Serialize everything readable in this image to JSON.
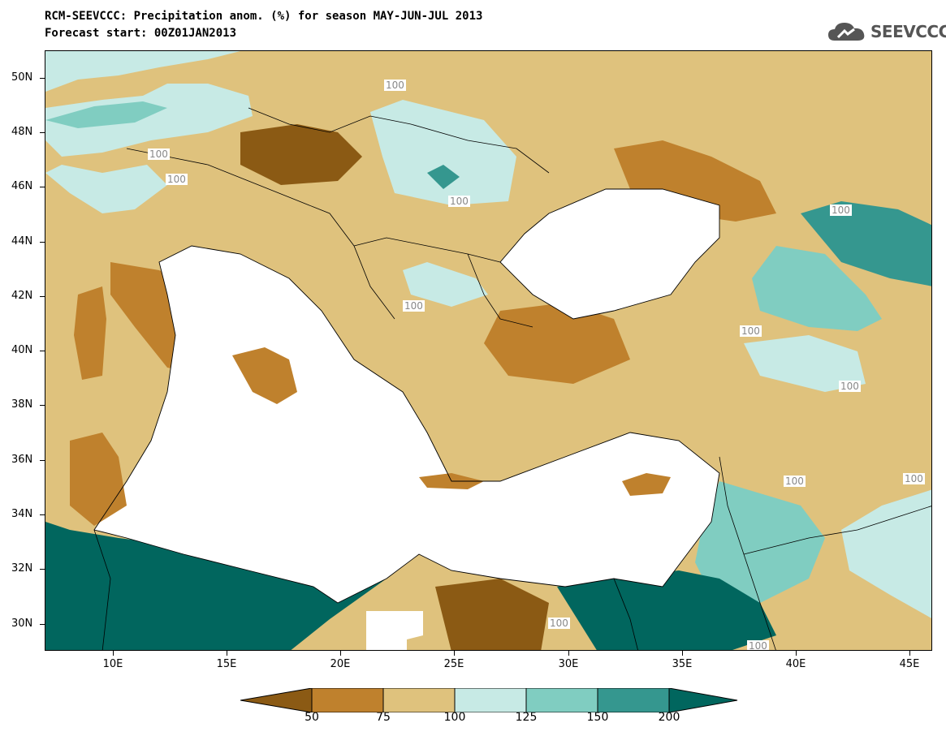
{
  "title": {
    "line1": "RCM-SEEVCCC: Precipitation anom. (%) for season MAY-JUN-JUL 2013",
    "line2": "Forecast start: 00Z01JAN2013"
  },
  "logo": {
    "text": "SEEVCCC",
    "icon": "cloud-logo-icon"
  },
  "map": {
    "lat_labels": [
      "50N",
      "48N",
      "46N",
      "44N",
      "42N",
      "40N",
      "38N",
      "36N",
      "34N",
      "32N",
      "30N"
    ],
    "lon_labels": [
      "10E",
      "15E",
      "20E",
      "25E",
      "30E",
      "35E",
      "40E",
      "45E"
    ],
    "contour_labels": [
      "100",
      "100",
      "100",
      "100",
      "100",
      "100",
      "100",
      "100",
      "100",
      "100",
      "100",
      "100"
    ],
    "colors": {
      "below50": "#8b5a14",
      "c50_75": "#bf812d",
      "c75_100": "#dfc27d",
      "c100_125": "#c7eae5",
      "c125_150": "#80cdc1",
      "c150_200": "#35978f",
      "above200": "#01665e",
      "sea": "#ffffff"
    }
  },
  "colorbar": {
    "labels": [
      "50",
      "75",
      "100",
      "125",
      "150",
      "200"
    ],
    "colors": [
      "#8b5a14",
      "#bf812d",
      "#dfc27d",
      "#c7eae5",
      "#80cdc1",
      "#35978f",
      "#01665e"
    ]
  }
}
